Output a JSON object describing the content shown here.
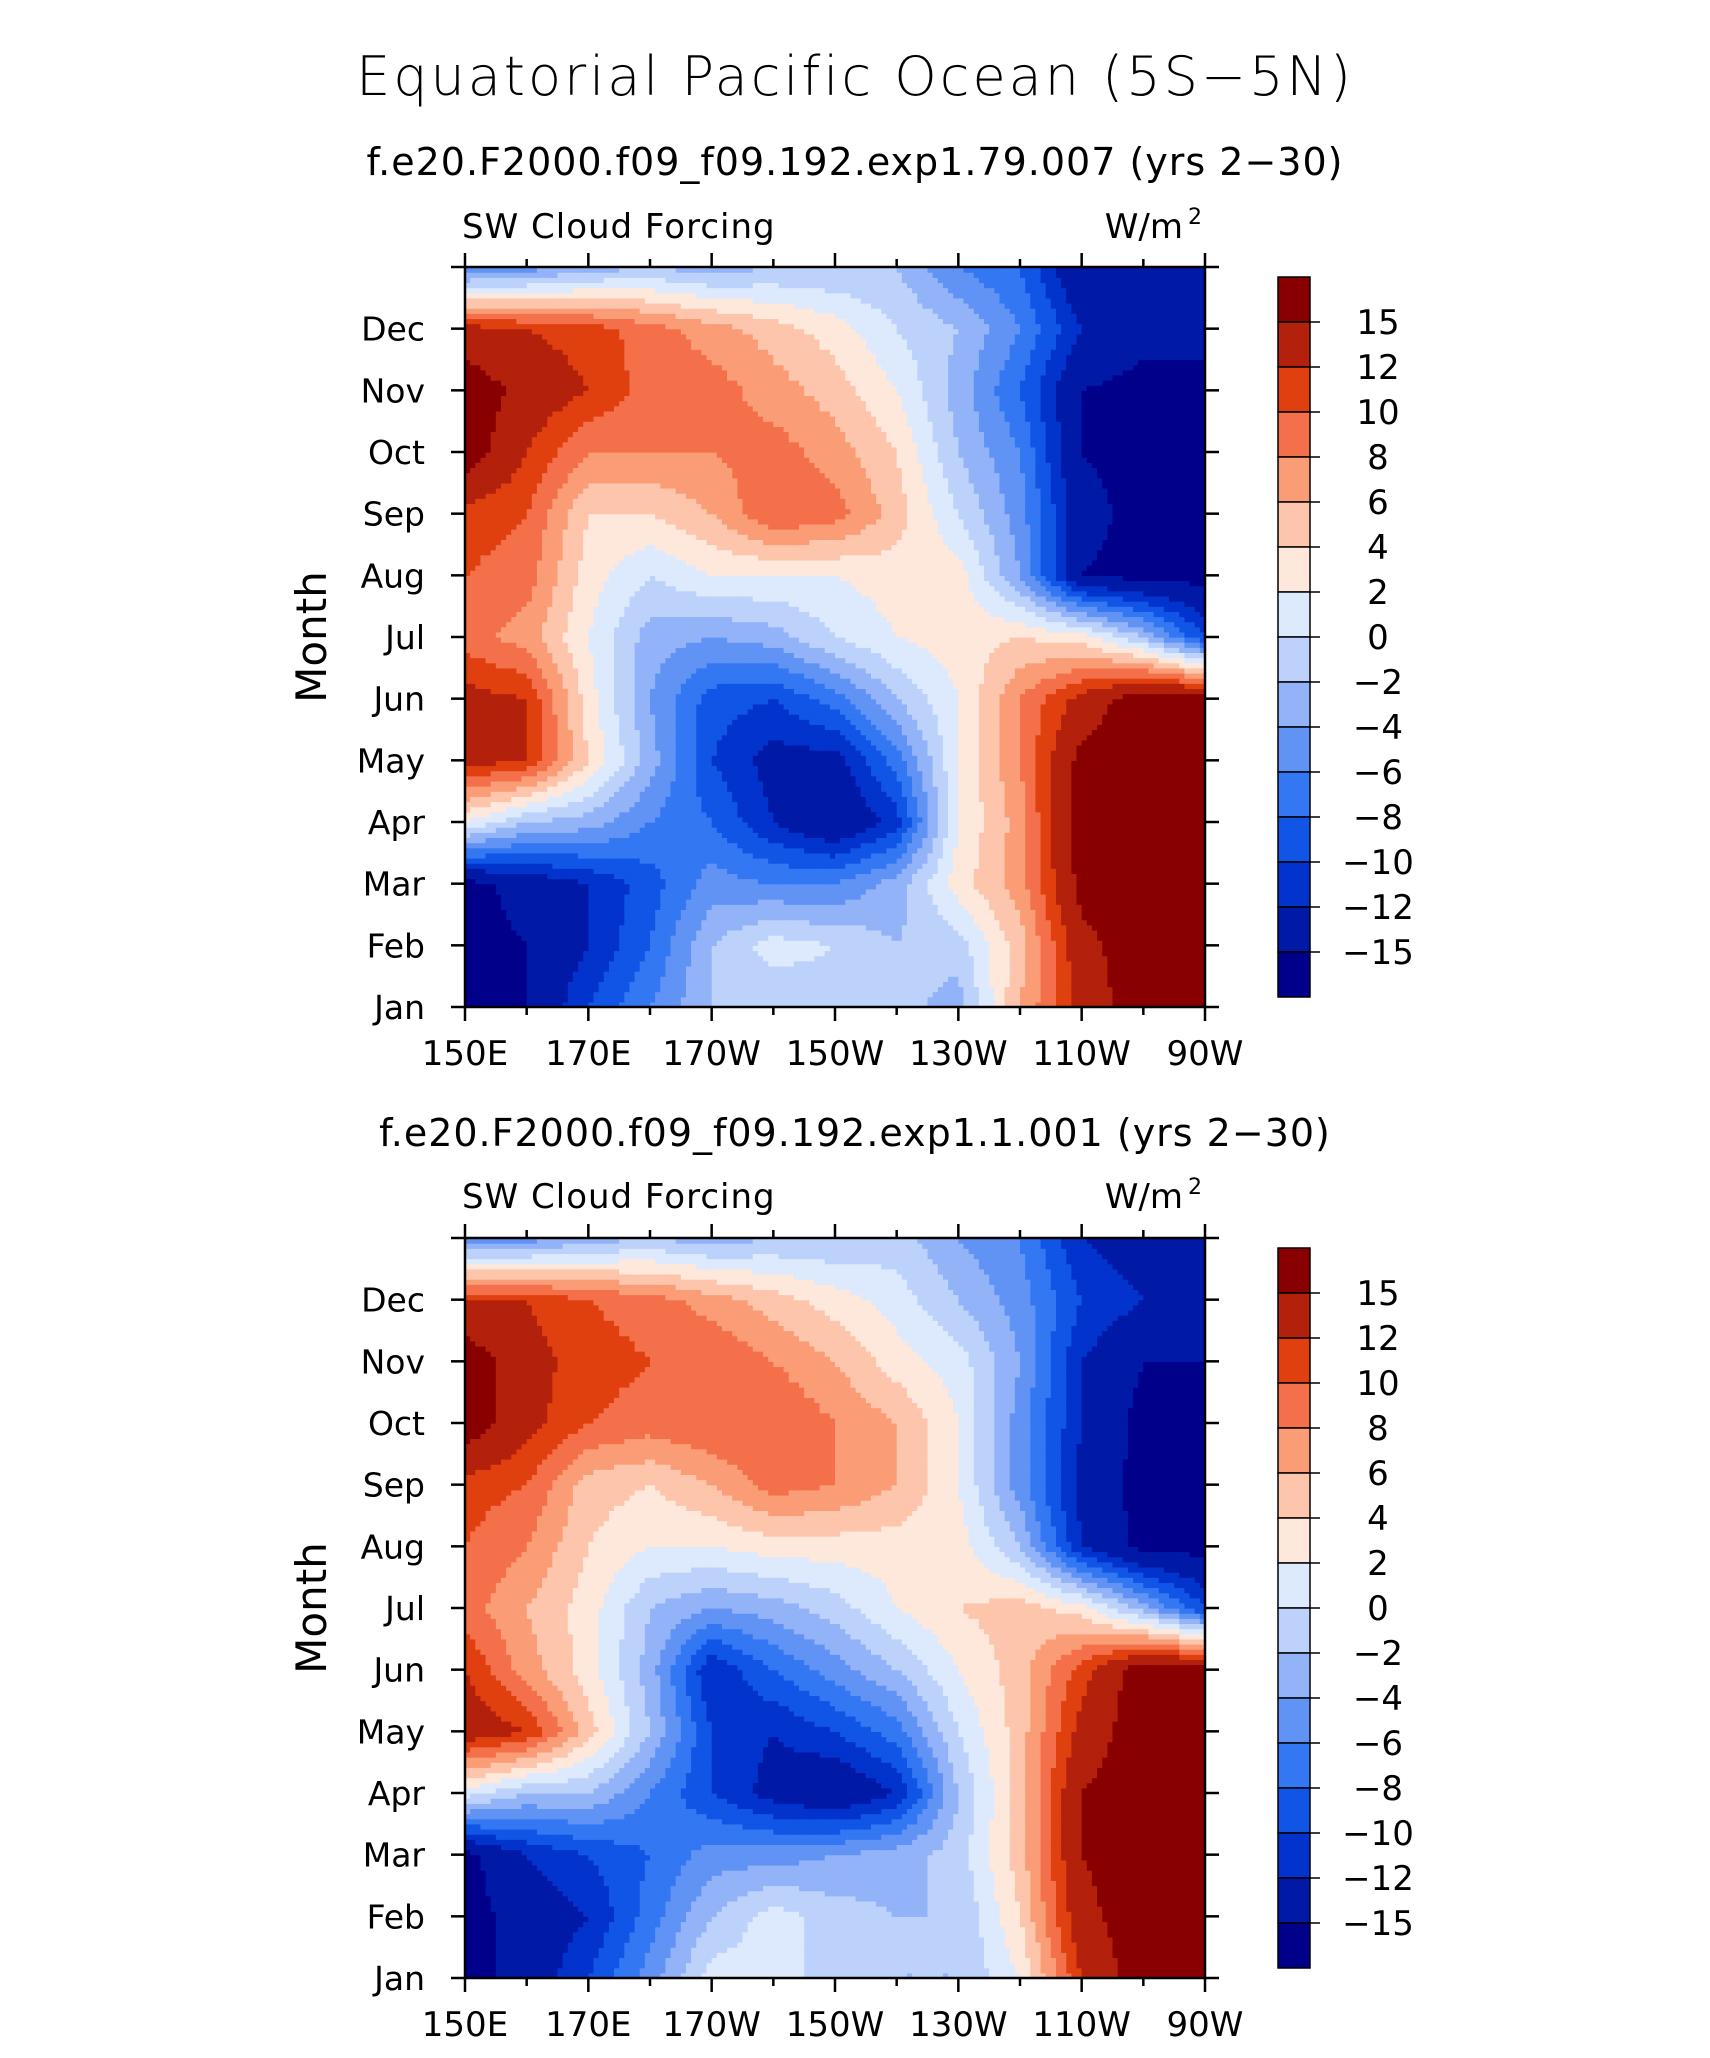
{
  "title": "Equatorial Pacific Ocean (5S−5N)",
  "colors": {
    "levels": [
      "#00008a",
      "#0019a6",
      "#0233cc",
      "#1155e6",
      "#3377f2",
      "#6193f5",
      "#93b3f8",
      "#bdd2fb",
      "#dde9fd",
      "#fde8db",
      "#fdc5ab",
      "#fa9d76",
      "#f4704a",
      "#e0400f",
      "#b3200b",
      "#880000"
    ]
  },
  "chart_data": [
    {
      "type": "heatmap",
      "subtitle": "f.e20.F2000.f09_f09.192.exp1.79.007 (yrs 2−30)",
      "left_label": "SW Cloud Forcing",
      "units_base": "W/m",
      "units_sup": "2",
      "ylabel": "Month",
      "x_tick_labels": [
        "150E",
        "170E",
        "170W",
        "150W",
        "130W",
        "110W",
        "90W"
      ],
      "y_tick_labels": [
        "Jan",
        "Feb",
        "Mar",
        "Apr",
        "May",
        "Jun",
        "Jul",
        "Aug",
        "Sep",
        "Oct",
        "Nov",
        "Dec"
      ],
      "colorbar_labels": [
        "15",
        "12",
        "10",
        "8",
        "6",
        "4",
        "2",
        "0",
        "−2",
        "−4",
        "−6",
        "−8",
        "−10",
        "−12",
        "−15"
      ],
      "x_lon": [
        150,
        160,
        170,
        180,
        190,
        200,
        210,
        220,
        230,
        240,
        250,
        260,
        270
      ],
      "y_month": [
        1,
        2,
        3,
        4,
        5,
        6,
        7,
        8,
        9,
        10,
        11,
        12,
        13
      ],
      "z": [
        [
          -16,
          -15,
          -10,
          -6,
          -2,
          -2,
          -1,
          -1,
          -3,
          6,
          13,
          17,
          17
        ],
        [
          -16,
          -15,
          -12,
          -8,
          -2,
          1,
          0,
          -2,
          -1,
          5,
          14,
          17,
          17
        ],
        [
          -16,
          -14,
          -12,
          -9,
          -5,
          -6,
          -6,
          -3,
          3,
          7,
          16,
          17,
          17
        ],
        [
          2,
          -2,
          -3,
          -6,
          -8,
          -12,
          -15,
          -11,
          2,
          7,
          17,
          17,
          17
        ],
        [
          13,
          12,
          4,
          -3,
          -10,
          -13,
          -13,
          -7,
          2,
          8,
          16,
          17,
          17
        ],
        [
          13,
          12,
          3,
          -4,
          -9,
          -10,
          -7,
          -2,
          2,
          8,
          13,
          17,
          17
        ],
        [
          9,
          7,
          2,
          -3,
          -4,
          -3,
          0,
          2,
          3,
          4,
          3,
          -2,
          -10
        ],
        [
          10,
          9,
          3,
          0,
          2,
          2,
          2,
          3,
          3,
          -4,
          -15,
          -16,
          -16
        ],
        [
          11,
          10,
          4,
          4,
          6,
          10,
          9,
          5,
          0,
          -5,
          -14,
          -16,
          -16
        ],
        [
          17,
          12,
          8,
          8,
          8,
          9,
          7,
          4,
          -2,
          -6,
          -15,
          -16,
          -16
        ],
        [
          17,
          14,
          12,
          9,
          9,
          7,
          5,
          2,
          -3,
          -8,
          -15,
          -16,
          -16
        ],
        [
          13,
          12,
          11,
          9,
          7,
          5,
          3,
          0,
          -2,
          -6,
          -12,
          -14,
          -14
        ],
        [
          -6,
          -5,
          -3,
          -2,
          -3,
          -2,
          -2,
          -2,
          -6,
          -8,
          -15,
          -15,
          -12
        ]
      ]
    },
    {
      "type": "heatmap",
      "subtitle": "f.e20.F2000.f09_f09.192.exp1.1.001 (yrs 2−30)",
      "left_label": "SW Cloud Forcing",
      "units_base": "W/m",
      "units_sup": "2",
      "ylabel": "Month",
      "x_tick_labels": [
        "150E",
        "170E",
        "170W",
        "150W",
        "130W",
        "110W",
        "90W"
      ],
      "y_tick_labels": [
        "Jan",
        "Feb",
        "Mar",
        "Apr",
        "May",
        "Jun",
        "Jul",
        "Aug",
        "Sep",
        "Oct",
        "Nov",
        "Dec"
      ],
      "colorbar_labels": [
        "15",
        "12",
        "10",
        "8",
        "6",
        "4",
        "2",
        "0",
        "−2",
        "−4",
        "−6",
        "−8",
        "−10",
        "−12",
        "−15"
      ],
      "x_lon": [
        150,
        160,
        170,
        180,
        190,
        200,
        210,
        220,
        230,
        240,
        250,
        260,
        270
      ],
      "y_month": [
        1,
        2,
        3,
        4,
        5,
        6,
        7,
        8,
        9,
        10,
        11,
        12,
        13
      ],
      "z": [
        [
          -16,
          -14,
          -10,
          -5,
          1,
          1,
          -1,
          -2,
          -2,
          2,
          12,
          17,
          17
        ],
        [
          -16,
          -14,
          -12,
          -7,
          -2,
          1,
          -1,
          -2,
          -2,
          4,
          14,
          17,
          17
        ],
        [
          -16,
          -12,
          -10,
          -8,
          -5,
          -5,
          -4,
          -3,
          -1,
          5,
          15,
          17,
          17
        ],
        [
          1,
          -2,
          -2,
          -6,
          -10,
          -13,
          -15,
          -12,
          -2,
          5,
          15,
          17,
          17
        ],
        [
          14,
          12,
          5,
          -2,
          -10,
          -12,
          -10,
          -7,
          0,
          5,
          13,
          17,
          17
        ],
        [
          12,
          7,
          3,
          -3,
          -12,
          -8,
          -5,
          -2,
          2,
          5,
          11,
          17,
          17
        ],
        [
          9,
          6,
          3,
          -2,
          -4,
          -3,
          -1,
          2,
          4,
          5,
          3,
          -3,
          -10
        ],
        [
          10,
          8,
          4,
          2,
          2,
          3,
          3,
          3,
          3,
          -2,
          -12,
          -16,
          -16
        ],
        [
          11,
          10,
          5,
          4,
          6,
          9,
          8,
          6,
          2,
          -5,
          -13,
          -16,
          -16
        ],
        [
          17,
          13,
          10,
          9,
          10,
          10,
          8,
          6,
          2,
          -5,
          -12,
          -16,
          -16
        ],
        [
          17,
          13,
          11,
          10,
          10,
          8,
          6,
          3,
          1,
          -4,
          -12,
          -15,
          -15
        ],
        [
          12,
          12,
          10,
          9,
          7,
          5,
          3,
          1,
          -2,
          -5,
          -10,
          -12,
          -12
        ],
        [
          -5,
          -5,
          -3,
          -2,
          -3,
          -2,
          -2,
          -1,
          -4,
          -6,
          -12,
          -14,
          -12
        ]
      ]
    }
  ]
}
